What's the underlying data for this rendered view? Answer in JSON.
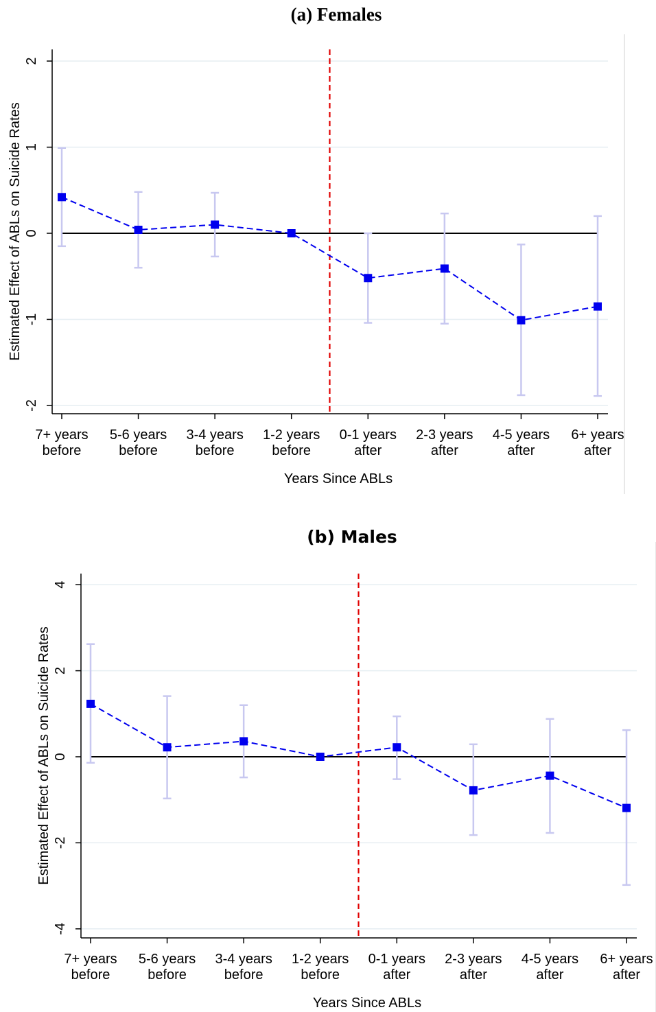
{
  "chart_data": [
    {
      "type": "scatter",
      "panel": "a",
      "title": "(a) Females",
      "xlabel": "Years Since ABLs",
      "ylabel": "Estimated Effect of ABLs on Suicide Rates",
      "categories": [
        "7+ years before",
        "5-6 years before",
        "3-4 years before",
        "1-2 years before",
        "0-1 years after",
        "2-3 years after",
        "4-5 years after",
        "6+ years after"
      ],
      "category_lines": [
        [
          "7+ years",
          "before"
        ],
        [
          "5-6 years",
          "before"
        ],
        [
          "3-4 years",
          "before"
        ],
        [
          "1-2 years",
          "before"
        ],
        [
          "0-1 years",
          "after"
        ],
        [
          "2-3 years",
          "after"
        ],
        [
          "4-5 years",
          "after"
        ],
        [
          "6+ years",
          "after"
        ]
      ],
      "series": [
        {
          "values": [
            0.42,
            0.04,
            0.1,
            0.0,
            -0.52,
            -0.41,
            -1.01,
            -0.85
          ],
          "ci_low": [
            -0.15,
            -0.4,
            -0.27,
            0.0,
            -1.04,
            -1.05,
            -1.88,
            -1.89
          ],
          "ci_high": [
            0.99,
            0.48,
            0.47,
            0.0,
            0.0,
            0.23,
            -0.13,
            0.2
          ]
        }
      ],
      "yticks": [
        -2,
        -1,
        0,
        1,
        2
      ],
      "ylim": [
        -2.1,
        2.12
      ],
      "event_line_between": [
        3,
        4
      ],
      "grid": true,
      "colors": {
        "series": "#0000ee",
        "ci": "#c8c8f0",
        "event_line": "#e00000",
        "zero_line": "#000000",
        "grid": "#e6eef2"
      }
    },
    {
      "type": "scatter",
      "panel": "b",
      "title": "(b) Males",
      "xlabel": "Years Since ABLs",
      "ylabel": "Estimated Effect of ABLs on Suicide Rates",
      "categories": [
        "7+ years before",
        "5-6 years before",
        "3-4 years before",
        "1-2 years before",
        "0-1 years after",
        "2-3 years after",
        "4-5 years after",
        "6+ years after"
      ],
      "category_lines": [
        [
          "7+ years",
          "before"
        ],
        [
          "5-6 years",
          "before"
        ],
        [
          "3-4 years",
          "before"
        ],
        [
          "1-2 years",
          "before"
        ],
        [
          "0-1 years",
          "after"
        ],
        [
          "2-3 years",
          "after"
        ],
        [
          "4-5 years",
          "after"
        ],
        [
          "6+ years",
          "after"
        ]
      ],
      "series": [
        {
          "values": [
            1.23,
            0.22,
            0.36,
            0.0,
            0.22,
            -0.78,
            -0.44,
            -1.19
          ],
          "ci_low": [
            -0.14,
            -0.97,
            -0.48,
            0.0,
            -0.52,
            -1.82,
            -1.77,
            -2.98
          ],
          "ci_high": [
            2.62,
            1.41,
            1.2,
            0.0,
            0.94,
            0.29,
            0.88,
            0.62
          ]
        }
      ],
      "yticks": [
        -4,
        -2,
        0,
        2,
        4
      ],
      "ylim": [
        -4.2,
        4.22
      ],
      "event_line_between": [
        3,
        4
      ],
      "grid": true,
      "colors": {
        "series": "#0000ee",
        "ci": "#c8c8f0",
        "event_line": "#e00000",
        "zero_line": "#000000",
        "grid": "#e6eef2"
      }
    }
  ]
}
